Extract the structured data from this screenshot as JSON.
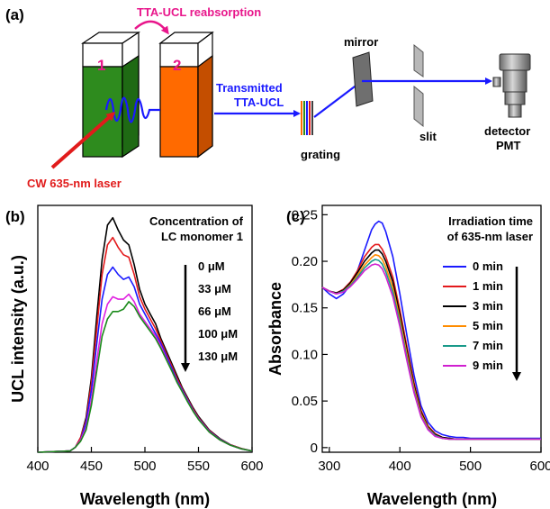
{
  "panel_a": {
    "label": "(a)",
    "reabsorption_label": "TTA-UCL reabsorption",
    "cuvette_1": "1",
    "cuvette_2": "2",
    "laser_label": "CW 635-nm laser",
    "transmitted_label_1": "Transmitted",
    "transmitted_label_2": "TTA-UCL",
    "grating_label": "grating",
    "mirror_label": "mirror",
    "slit_label": "slit",
    "detector_label_1": "detector",
    "detector_label_2": "PMT",
    "colors": {
      "magenta": "#e8168b",
      "red": "#e11b1b",
      "blue": "#1a1aff",
      "green": "#2e8b1e",
      "orange": "#ff6a00"
    }
  },
  "chart_data": [
    {
      "panel": "(b)",
      "type": "line",
      "xlabel": "Wavelength (nm)",
      "ylabel": "UCL intensity (a.u.)",
      "xlim": [
        400,
        600
      ],
      "ylim": [
        0,
        1.0
      ],
      "x_ticks": [
        400,
        450,
        500,
        550,
        600
      ],
      "y_ticks": [],
      "legend_title_1": "Concentration of",
      "legend_title_2": "LC monomer 1",
      "legend_items": [
        "0 μM",
        "33 μM",
        "66 μM",
        "100 μM",
        "130 μM"
      ],
      "series": [
        {
          "color": "#000000",
          "x": [
            400,
            430,
            435,
            440,
            445,
            450,
            455,
            460,
            465,
            470,
            475,
            480,
            485,
            490,
            495,
            500,
            505,
            510,
            515,
            520,
            525,
            530,
            535,
            540,
            545,
            550,
            560,
            570,
            580,
            590,
            600
          ],
          "values": [
            0,
            0.005,
            0.02,
            0.06,
            0.14,
            0.3,
            0.55,
            0.78,
            0.92,
            0.95,
            0.9,
            0.86,
            0.84,
            0.76,
            0.66,
            0.6,
            0.56,
            0.52,
            0.46,
            0.41,
            0.36,
            0.31,
            0.26,
            0.22,
            0.18,
            0.145,
            0.09,
            0.055,
            0.03,
            0.015,
            0.005
          ]
        },
        {
          "color": "#e31a1c",
          "x": [
            400,
            430,
            435,
            440,
            445,
            450,
            455,
            460,
            465,
            470,
            475,
            480,
            485,
            490,
            495,
            500,
            505,
            510,
            515,
            520,
            525,
            530,
            535,
            540,
            545,
            550,
            560,
            570,
            580,
            590,
            600
          ],
          "values": [
            0,
            0.005,
            0.02,
            0.06,
            0.13,
            0.28,
            0.5,
            0.72,
            0.84,
            0.87,
            0.83,
            0.8,
            0.79,
            0.72,
            0.63,
            0.58,
            0.54,
            0.5,
            0.45,
            0.4,
            0.35,
            0.3,
            0.255,
            0.215,
            0.175,
            0.14,
            0.088,
            0.053,
            0.03,
            0.015,
            0.005
          ]
        },
        {
          "color": "#1a1aff",
          "x": [
            400,
            430,
            435,
            440,
            445,
            450,
            455,
            460,
            465,
            470,
            475,
            480,
            485,
            490,
            495,
            500,
            505,
            510,
            515,
            520,
            525,
            530,
            535,
            540,
            545,
            550,
            560,
            570,
            580,
            590,
            600
          ],
          "values": [
            0,
            0.005,
            0.02,
            0.05,
            0.12,
            0.25,
            0.44,
            0.62,
            0.72,
            0.75,
            0.72,
            0.7,
            0.71,
            0.67,
            0.6,
            0.56,
            0.52,
            0.48,
            0.44,
            0.39,
            0.34,
            0.29,
            0.25,
            0.21,
            0.17,
            0.137,
            0.085,
            0.052,
            0.029,
            0.014,
            0.005
          ]
        },
        {
          "color": "#e020e0",
          "x": [
            400,
            430,
            435,
            440,
            445,
            450,
            455,
            460,
            465,
            470,
            475,
            480,
            485,
            490,
            495,
            500,
            505,
            510,
            515,
            520,
            525,
            530,
            535,
            540,
            545,
            550,
            560,
            570,
            580,
            590,
            600
          ],
          "values": [
            0,
            0.005,
            0.02,
            0.05,
            0.1,
            0.21,
            0.37,
            0.52,
            0.6,
            0.63,
            0.62,
            0.62,
            0.64,
            0.61,
            0.56,
            0.53,
            0.5,
            0.47,
            0.43,
            0.38,
            0.33,
            0.285,
            0.245,
            0.205,
            0.168,
            0.135,
            0.083,
            0.05,
            0.028,
            0.014,
            0.005
          ]
        },
        {
          "color": "#1a8a1a",
          "x": [
            400,
            430,
            435,
            440,
            445,
            450,
            455,
            460,
            465,
            470,
            475,
            480,
            485,
            490,
            495,
            500,
            505,
            510,
            515,
            520,
            525,
            530,
            535,
            540,
            545,
            550,
            560,
            570,
            580,
            590,
            600
          ],
          "values": [
            0,
            0.005,
            0.02,
            0.045,
            0.09,
            0.19,
            0.33,
            0.47,
            0.54,
            0.57,
            0.57,
            0.58,
            0.61,
            0.59,
            0.55,
            0.52,
            0.49,
            0.46,
            0.42,
            0.375,
            0.33,
            0.283,
            0.243,
            0.203,
            0.166,
            0.133,
            0.082,
            0.05,
            0.028,
            0.014,
            0.005
          ]
        }
      ]
    },
    {
      "panel": "(c)",
      "type": "line",
      "xlabel": "Wavelength (nm)",
      "ylabel": "Absorbance",
      "xlim": [
        290,
        600
      ],
      "ylim": [
        -0.005,
        0.26
      ],
      "x_ticks": [
        300,
        400,
        500,
        600
      ],
      "y_ticks": [
        0,
        0.05,
        0.1,
        0.15,
        0.2,
        0.25
      ],
      "y_tick_labels": [
        "0",
        "0.05",
        "0.10",
        "0.15",
        "0.20",
        "0.25"
      ],
      "legend_title_1": "Irradiation time",
      "legend_title_2": "of 635-nm laser",
      "legend_items": [
        "0 min",
        "1 min",
        "3 min",
        "5 min",
        "7 min",
        "9 min"
      ],
      "series": [
        {
          "name": "0 min",
          "color": "#1a1aff",
          "x": [
            290,
            300,
            310,
            320,
            330,
            340,
            350,
            360,
            365,
            370,
            375,
            380,
            390,
            400,
            410,
            420,
            430,
            440,
            450,
            460,
            470,
            480,
            490,
            500,
            520,
            550,
            600
          ],
          "values": [
            0.172,
            0.165,
            0.16,
            0.165,
            0.175,
            0.19,
            0.212,
            0.234,
            0.24,
            0.243,
            0.241,
            0.232,
            0.205,
            0.165,
            0.12,
            0.078,
            0.045,
            0.027,
            0.018,
            0.014,
            0.012,
            0.011,
            0.011,
            0.01,
            0.01,
            0.01,
            0.01
          ]
        },
        {
          "name": "1 min",
          "color": "#e31a1c",
          "x": [
            290,
            300,
            310,
            320,
            330,
            340,
            350,
            360,
            365,
            370,
            375,
            380,
            390,
            400,
            410,
            420,
            430,
            440,
            450,
            460,
            470,
            480,
            490,
            500,
            520,
            550,
            600
          ],
          "values": [
            0.172,
            0.168,
            0.166,
            0.17,
            0.178,
            0.19,
            0.205,
            0.215,
            0.218,
            0.218,
            0.213,
            0.205,
            0.183,
            0.148,
            0.108,
            0.07,
            0.04,
            0.023,
            0.015,
            0.011,
            0.01,
            0.009,
            0.009,
            0.009,
            0.009,
            0.009,
            0.009
          ]
        },
        {
          "name": "3 min",
          "color": "#000000",
          "x": [
            290,
            300,
            310,
            320,
            330,
            340,
            350,
            360,
            365,
            370,
            375,
            380,
            390,
            400,
            410,
            420,
            430,
            440,
            450,
            460,
            470,
            480,
            490,
            500,
            520,
            550,
            600
          ],
          "values": [
            0.172,
            0.168,
            0.166,
            0.169,
            0.177,
            0.188,
            0.2,
            0.209,
            0.212,
            0.212,
            0.208,
            0.2,
            0.178,
            0.143,
            0.104,
            0.067,
            0.038,
            0.022,
            0.014,
            0.011,
            0.01,
            0.009,
            0.009,
            0.009,
            0.009,
            0.009,
            0.009
          ]
        },
        {
          "name": "5 min",
          "color": "#ff8c00",
          "x": [
            290,
            300,
            310,
            320,
            330,
            340,
            350,
            360,
            365,
            370,
            375,
            380,
            390,
            400,
            410,
            420,
            430,
            440,
            450,
            460,
            470,
            480,
            490,
            500,
            520,
            550,
            600
          ],
          "values": [
            0.172,
            0.168,
            0.165,
            0.168,
            0.175,
            0.185,
            0.196,
            0.204,
            0.207,
            0.206,
            0.202,
            0.194,
            0.172,
            0.138,
            0.1,
            0.064,
            0.036,
            0.021,
            0.013,
            0.01,
            0.009,
            0.009,
            0.009,
            0.009,
            0.009,
            0.009,
            0.009
          ]
        },
        {
          "name": "7 min",
          "color": "#1a9a8a",
          "x": [
            290,
            300,
            310,
            320,
            330,
            340,
            350,
            360,
            365,
            370,
            375,
            380,
            390,
            400,
            410,
            420,
            430,
            440,
            450,
            460,
            470,
            480,
            490,
            500,
            520,
            550,
            600
          ],
          "values": [
            0.172,
            0.168,
            0.165,
            0.168,
            0.174,
            0.183,
            0.193,
            0.2,
            0.202,
            0.201,
            0.197,
            0.189,
            0.167,
            0.134,
            0.096,
            0.061,
            0.034,
            0.02,
            0.013,
            0.01,
            0.009,
            0.009,
            0.009,
            0.009,
            0.009,
            0.009,
            0.009
          ]
        },
        {
          "name": "9 min",
          "color": "#d020d0",
          "x": [
            290,
            300,
            310,
            320,
            330,
            340,
            350,
            360,
            365,
            370,
            375,
            380,
            390,
            400,
            410,
            420,
            430,
            440,
            450,
            460,
            470,
            480,
            490,
            500,
            520,
            550,
            600
          ],
          "values": [
            0.172,
            0.168,
            0.165,
            0.167,
            0.173,
            0.181,
            0.19,
            0.196,
            0.197,
            0.196,
            0.192,
            0.184,
            0.162,
            0.13,
            0.093,
            0.059,
            0.033,
            0.019,
            0.012,
            0.01,
            0.009,
            0.009,
            0.009,
            0.009,
            0.009,
            0.009,
            0.009
          ]
        }
      ]
    }
  ]
}
